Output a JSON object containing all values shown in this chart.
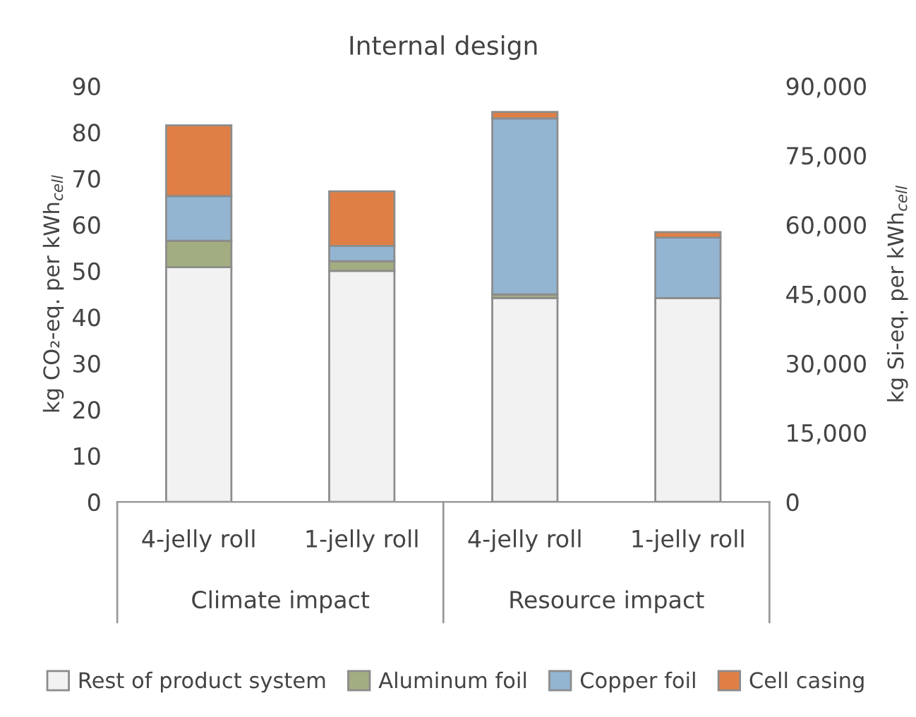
{
  "chart_data": {
    "type": "bar",
    "title": "Internal design",
    "ylabel": "kg CO₂-eq. per kWh$_{cell}$",
    "y2label": "kg Si-eq. per kWh$_{cell}$",
    "categories": [
      "4-jelly roll",
      "1-jelly roll",
      "4-jelly roll",
      "1-jelly roll"
    ],
    "annotations": [
      "Climate impact",
      "Resource impact"
    ],
    "stacked": true,
    "legend": "bottom",
    "grid": false,
    "ylim": [
      0,
      90
    ],
    "yticks": [
      0,
      10,
      20,
      30,
      40,
      50,
      60,
      70,
      80,
      90
    ],
    "y2lim": [
      0,
      90000
    ],
    "y2ticks": [
      {
        "value": 0,
        "label": "0"
      },
      {
        "value": 15000,
        "label": "15,000"
      },
      {
        "value": 30000,
        "label": "30,000"
      },
      {
        "value": 45000,
        "label": "45,000"
      },
      {
        "value": 60000,
        "label": "60,000"
      },
      {
        "value": 75000,
        "label": "75,000"
      },
      {
        "value": 90000,
        "label": "90,000"
      }
    ],
    "series": [
      {
        "name": "Rest of product system",
        "color": "#f2f2f2",
        "values": [
          50.8,
          50.0,
          null,
          null
        ]
      },
      {
        "name": "Aluminum foil",
        "color": "#a3ad82",
        "values": [
          5.7,
          2.1,
          null,
          null
        ]
      },
      {
        "name": "Copper foil",
        "color": "#93b5d2",
        "values": [
          9.7,
          3.3,
          null,
          null
        ]
      },
      {
        "name": "Cell casing",
        "color": "#e07f45",
        "values": [
          15.3,
          11.8,
          null,
          null
        ]
      },
      {
        "color": "#f2f2f2",
        "axis": "y2",
        "values": [
          null,
          null,
          44100,
          44100
        ]
      },
      {
        "color": "#a3ad82",
        "axis": "y2",
        "values": [
          null,
          null,
          800,
          null
        ]
      },
      {
        "color": "#93b5d2",
        "axis": "y2",
        "values": [
          null,
          null,
          38100,
          13100
        ]
      },
      {
        "color": "#e07f45",
        "axis": "y2",
        "values": [
          null,
          null,
          1400,
          1200
        ]
      }
    ]
  }
}
